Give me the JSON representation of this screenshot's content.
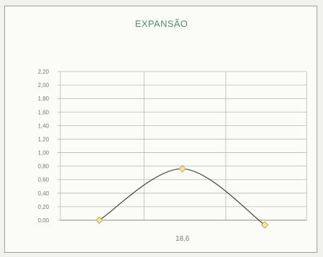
{
  "chart_data": {
    "type": "line",
    "title": "EXPANSÃO",
    "x": [
      0,
      1,
      2
    ],
    "values": [
      0.0,
      0.76,
      -0.07
    ],
    "x_tick_label": "18,6",
    "ylim": [
      0,
      2.2
    ],
    "y_ticks": [
      "0,00",
      "0,20",
      "0,40",
      "0,60",
      "0,80",
      "1,00",
      "1,20",
      "1,40",
      "1,60",
      "1,80",
      "2,00",
      "2,20"
    ],
    "grid": true,
    "legend": "none",
    "colors": {
      "line": "#3d3d3d",
      "marker_fill": "#f5e6a8",
      "marker_stroke": "#c9a23a",
      "grid": "#b8b8b8",
      "title": "#4f8f6f"
    }
  }
}
